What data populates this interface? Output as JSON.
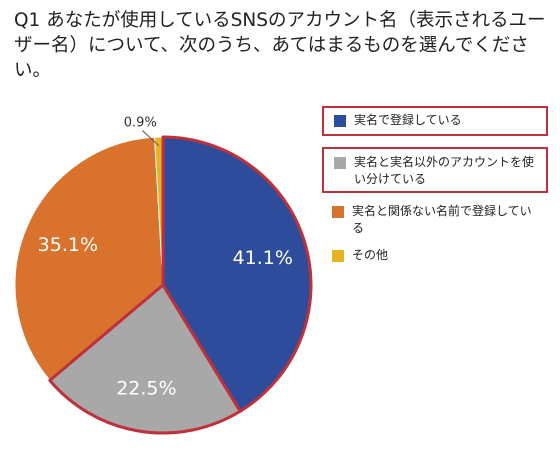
{
  "chart_data": {
    "type": "pie",
    "title": "Q1 あなたが使用しているSNSのアカウント名（表示されるユーザー名）について、次のうち、あてはまるものを選んでください。",
    "slices": [
      {
        "label": "実名で登録している",
        "value": 41.1,
        "value_label": "41.1%",
        "color": "#2e4c9c",
        "highlighted": true
      },
      {
        "label": "実名と実名以外のアカウントを使い分けている",
        "value": 22.5,
        "value_label": "22.5%",
        "color": "#a8a8a8",
        "highlighted": true
      },
      {
        "label": "実名と関係ない名前で登録している",
        "value": 35.1,
        "value_label": "35.1%",
        "color": "#d9722c",
        "highlighted": false
      },
      {
        "label": "その他",
        "value": 0.9,
        "value_label": "0.9%",
        "color": "#e8b321",
        "highlighted": false
      }
    ],
    "start_angle_deg": 0,
    "direction": "clockwise",
    "legend_position": "right",
    "highlight_color": "#c0303a"
  }
}
